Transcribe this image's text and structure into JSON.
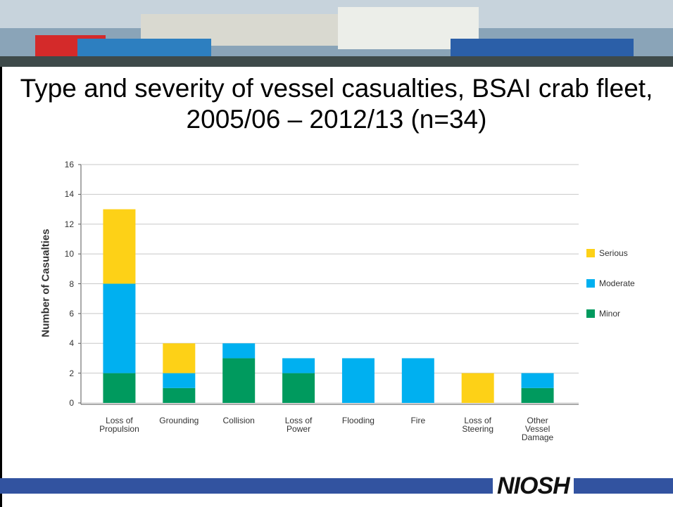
{
  "chart_data": {
    "type": "stacked_bar",
    "title": "Type and severity of vessel casualties, BSAI crab fleet, 2005/06 – 2012/13 (n=34)",
    "y_label": "Number of Casualties",
    "categories": [
      "Loss of Propulsion",
      "Grounding",
      "Collision",
      "Loss of Power",
      "Flooding",
      "Fire",
      "Loss of Steering",
      "Other Vessel Damage"
    ],
    "series": [
      {
        "name": "Minor",
        "color": "#009a5e",
        "values": [
          2,
          1,
          3,
          2,
          0,
          0,
          0,
          1
        ]
      },
      {
        "name": "Moderate",
        "color": "#00b0f0",
        "values": [
          6,
          1,
          1,
          1,
          3,
          3,
          0,
          1
        ]
      },
      {
        "name": "Serious",
        "color": "#fdd117",
        "values": [
          5,
          2,
          0,
          0,
          0,
          0,
          2,
          0
        ]
      }
    ],
    "ylim": [
      0,
      16
    ],
    "yticks": [
      0,
      2,
      4,
      6,
      8,
      10,
      12,
      14,
      16
    ],
    "grid": true,
    "legend": "right"
  },
  "logo": "NIOSH"
}
